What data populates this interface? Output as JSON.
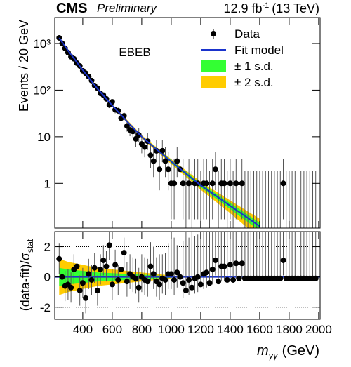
{
  "header": {
    "experiment": "CMS",
    "status": "Preliminary",
    "lumi": "12.9 fb",
    "lumi_sup": "-1",
    "energy": "(13 TeV)"
  },
  "chart_data": [
    {
      "type": "errorbar",
      "log_y": true,
      "ylabel": "Events / 20 GeV",
      "category_label": "EBEB",
      "xlim": [
        210,
        2010
      ],
      "xticks": [
        400,
        600,
        800,
        1000,
        1200,
        1400,
        1600,
        1800,
        2000
      ],
      "show_xtick_labels": false,
      "ylim": [
        0.11,
        3600
      ],
      "yticks": [
        1,
        10,
        {
          "value": 100,
          "label": "10²"
        },
        {
          "value": 1000,
          "label": "10³"
        }
      ],
      "legend": "upper right",
      "x": [
        240,
        260,
        280,
        300,
        320,
        340,
        360,
        380,
        400,
        420,
        440,
        460,
        480,
        500,
        520,
        540,
        560,
        580,
        600,
        620,
        640,
        660,
        680,
        700,
        720,
        740,
        760,
        780,
        800,
        820,
        840,
        860,
        880,
        900,
        920,
        940,
        960,
        980,
        1000,
        1020,
        1040,
        1060,
        1080,
        1100,
        1120,
        1140,
        1160,
        1180,
        1200,
        1220,
        1240,
        1260,
        1280,
        1300,
        1320,
        1340,
        1360,
        1380,
        1400,
        1420,
        1440,
        1460,
        1480,
        1500,
        1520,
        1540,
        1560,
        1580,
        1600,
        1620,
        1640,
        1660,
        1680,
        1700,
        1720,
        1740,
        1760,
        1780,
        1800,
        1820,
        1840,
        1860,
        1880,
        1900,
        1920,
        1940,
        1960,
        1980
      ],
      "series": [
        {
          "name": "Data",
          "color": "#000000",
          "values": [
            1320,
            1010,
            790,
            640,
            520,
            470,
            380,
            330,
            260,
            230,
            195,
            160,
            125,
            110,
            85,
            78,
            65,
            48,
            56,
            38,
            36,
            25,
            28,
            17,
            14,
            13,
            9,
            11,
            7,
            6,
            8,
            4,
            3,
            5,
            2,
            5,
            3,
            2,
            1,
            1,
            3,
            2,
            1,
            0,
            1,
            0,
            1,
            1,
            0,
            1,
            1,
            0,
            1,
            2,
            0,
            1,
            1,
            0,
            1,
            0,
            1,
            0,
            1,
            0,
            0,
            0,
            0,
            0,
            0,
            0,
            0,
            0,
            0,
            0,
            0,
            0,
            1,
            0,
            0,
            0,
            0,
            0,
            0,
            0,
            0,
            0,
            0,
            0
          ],
          "err_low": [
            36.3,
            31.8,
            28.1,
            25.3,
            22.8,
            21.7,
            19.5,
            18.2,
            16.1,
            15.2,
            14,
            12.6,
            11.2,
            10.5,
            9.2,
            8.8,
            8.1,
            6.9,
            7.5,
            6.2,
            6,
            5,
            5.3,
            4.1,
            3.71,
            3.58,
            2.94,
            3.26,
            2.58,
            2.38,
            2.77,
            1.91,
            1.63,
            2.16,
            1.29,
            2.16,
            1.63,
            1.29,
            0.83,
            0.83,
            1.63,
            1.29,
            0.83,
            0,
            0.83,
            0,
            0.83,
            0.83,
            0,
            0.83,
            0.83,
            0,
            0.83,
            1.29,
            0,
            0.83,
            0.83,
            0,
            0.83,
            0,
            0.83,
            0,
            0.83,
            0,
            0,
            0,
            0,
            0,
            0,
            0,
            0,
            0,
            0,
            0,
            0,
            0,
            0.83,
            0,
            0,
            0,
            0,
            0,
            0,
            0,
            0,
            0,
            0,
            0
          ],
          "err_high": [
            36.3,
            31.8,
            28.1,
            25.3,
            22.8,
            21.7,
            19.5,
            18.2,
            16.1,
            15.2,
            14,
            12.6,
            11.2,
            10.5,
            9.2,
            8.8,
            8.1,
            6.9,
            7.5,
            6.2,
            6,
            5,
            5.3,
            5.2,
            4.85,
            4.71,
            4.11,
            4.42,
            3.77,
            3.58,
            3.95,
            3.16,
            2.92,
            3.38,
            2.64,
            3.38,
            2.92,
            2.64,
            2.3,
            2.3,
            2.92,
            2.64,
            2.3,
            1.84,
            2.3,
            1.84,
            2.3,
            2.3,
            1.84,
            2.3,
            2.3,
            1.84,
            2.3,
            2.64,
            1.84,
            2.3,
            2.3,
            1.84,
            2.3,
            1.84,
            2.3,
            1.84,
            2.3,
            1.84,
            1.84,
            1.84,
            1.84,
            1.84,
            1.84,
            1.84,
            1.84,
            1.84,
            1.84,
            1.84,
            1.84,
            1.84,
            2.3,
            1.84,
            1.84,
            1.84,
            1.84,
            1.84,
            1.84,
            1.84,
            1.84,
            1.84,
            1.84,
            1.84
          ]
        },
        {
          "name": "Fit model",
          "color": "#1a33cc",
          "x": [
            240,
            300,
            400,
            500,
            600,
            700,
            800,
            900,
            1000,
            1100,
            1200,
            1300,
            1400,
            1500,
            1600
          ],
          "values": [
            1318,
            708,
            269,
            107,
            46.8,
            21.4,
            10,
            5.37,
            2.95,
            1.62,
            0.91,
            0.55,
            0.33,
            0.2,
            0.12
          ]
        }
      ],
      "bands": [
        {
          "name": "± 1 s.d.",
          "color": "#33ff33",
          "x": [
            240,
            400,
            600,
            800,
            1000,
            1200,
            1400,
            1600
          ],
          "low": [
            1292,
            264,
            45.4,
            9.6,
            2.77,
            0.82,
            0.28,
            0.096
          ],
          "high": [
            1344,
            274,
            48.2,
            10.4,
            3.13,
            1.0,
            0.38,
            0.144
          ]
        },
        {
          "name": "± 2 s.d.",
          "color": "#ffcc00",
          "x": [
            240,
            400,
            600,
            800,
            1000,
            1200,
            1400,
            1600
          ],
          "low": [
            1265,
            258,
            44,
            9.2,
            2.6,
            0.73,
            0.23,
            0.066
          ],
          "high": [
            1371,
            280,
            49.6,
            10.8,
            3.3,
            1.09,
            0.43,
            0.174
          ]
        }
      ]
    },
    {
      "type": "errorbar",
      "log_y": false,
      "ylabel": "(data-fit)/σ",
      "ylabel_sub": "stat",
      "xlabel": "m",
      "xlabel_sub": "γγ",
      "xlabel_unit": "(GeV)",
      "xlim": [
        210,
        2010
      ],
      "xticks": [
        400,
        600,
        800,
        1000,
        1200,
        1400,
        1600,
        1800,
        2000
      ],
      "show_xtick_labels": true,
      "ylim": [
        -2.8,
        3
      ],
      "yticks": [
        -2,
        0,
        2
      ],
      "ref_lines": [
        -2,
        2
      ],
      "fit_line": {
        "value": 0,
        "color": "#1a33cc"
      },
      "series": [
        {
          "color": "#000000",
          "values": [
            1.2,
            0,
            -0.6,
            -0.5,
            -0.7,
            0.5,
            0.7,
            -0.9,
            -0.4,
            -1.4,
            0.2,
            -0.2,
            0.6,
            -0.9,
            0.5,
            1.1,
            0.7,
            2.1,
            -0.5,
            0.8,
            -0.2,
            0.5,
            1.6,
            -0.3,
            0.2,
            0,
            -0.1,
            -0.7,
            0,
            -0.2,
            -0.3,
            0.7,
            0.2,
            -0.3,
            -0.5,
            -0.1,
            -0.2,
            0.2,
            0.2,
            -0.2,
            0.3,
            0,
            -0.4,
            -0.9,
            -0.2,
            -0.7,
            -0.1,
            0,
            -0.5,
            0.2,
            0.3,
            -0.4,
            0.5,
            1.1,
            -0.3,
            0.7,
            0.7,
            -0.2,
            0.8,
            -0.2,
            0.9,
            -0.1,
            0.9,
            -0.1,
            -0.1,
            -0.1,
            -0.1,
            -0.1,
            -0.1,
            -0.1,
            -0.1,
            -0.1,
            -0.1,
            -0.1,
            -0.1,
            -0.1,
            1.1,
            -0.1,
            -0.1,
            -0.1,
            -0.1,
            -0.1,
            -0.1,
            -0.1,
            -0.1,
            -0.1,
            -0.1,
            -0.1
          ],
          "err_low": [
            1,
            1,
            1,
            1,
            1,
            1,
            1,
            1,
            1,
            1,
            1,
            1,
            1,
            1,
            1,
            1,
            1,
            1,
            1,
            1,
            1,
            1,
            1,
            1,
            1,
            1,
            1,
            1,
            1,
            1,
            1,
            1,
            1,
            1,
            1,
            1,
            1,
            1,
            1,
            1,
            1,
            1,
            1,
            0,
            1,
            0,
            1,
            1,
            0,
            1,
            1,
            0,
            1,
            1,
            0,
            1,
            1,
            0,
            1,
            0,
            1,
            0,
            1,
            0,
            0,
            0,
            0,
            0,
            0,
            0,
            0,
            0,
            0,
            0,
            0,
            0,
            1,
            0,
            0,
            0,
            0,
            0,
            0,
            0,
            0,
            0,
            0,
            0
          ],
          "err_high": [
            1,
            1,
            1,
            1,
            1,
            1,
            1,
            1,
            1,
            1,
            1,
            1,
            1,
            1,
            1,
            1,
            1,
            1,
            1,
            1,
            1,
            1,
            1,
            1.3,
            1.3,
            1.3,
            1.3,
            1.3,
            1.5,
            1.5,
            1.5,
            1.6,
            1.8,
            1.6,
            2,
            1.6,
            1.8,
            2,
            2.8,
            2.8,
            1.8,
            2,
            2.8,
            5,
            2.8,
            5,
            2.8,
            2.8,
            5,
            2.8,
            2.8,
            5,
            2.8,
            2,
            5,
            2.8,
            2.8,
            5,
            2.8,
            5,
            2.8,
            5,
            2.8,
            5,
            5,
            5,
            5,
            5,
            5,
            5,
            5,
            5,
            5,
            5,
            5,
            5,
            2.8,
            5,
            5,
            5,
            5,
            5,
            5,
            5,
            5,
            5,
            5,
            5
          ]
        }
      ],
      "bands": [
        {
          "color": "#33ff33",
          "x": [
            240,
            300,
            400,
            500,
            600,
            700,
            800,
            900,
            1000
          ],
          "low": [
            -0.6,
            -0.5,
            -0.4,
            -0.3,
            -0.25,
            -0.2,
            -0.15,
            -0.1,
            -0.05
          ],
          "high": [
            0.6,
            0.5,
            0.4,
            0.3,
            0.25,
            0.2,
            0.15,
            0.1,
            0.05
          ]
        },
        {
          "color": "#ffcc00",
          "x": [
            240,
            300,
            400,
            500,
            600,
            700,
            800,
            900,
            1000
          ],
          "low": [
            -1.2,
            -1.0,
            -0.8,
            -0.6,
            -0.5,
            -0.4,
            -0.3,
            -0.2,
            -0.1
          ],
          "high": [
            1.2,
            1.0,
            0.8,
            0.6,
            0.5,
            0.4,
            0.3,
            0.2,
            0.1
          ]
        }
      ]
    }
  ]
}
